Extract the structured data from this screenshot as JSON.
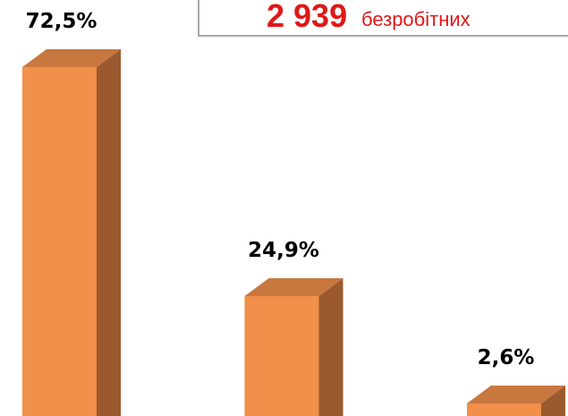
{
  "chart_data": {
    "type": "bar3d",
    "title": "2 939",
    "subtitle": "безробітних",
    "categories": [
      null,
      null,
      null
    ],
    "values": [
      72.5,
      24.9,
      2.6
    ],
    "value_labels": [
      "72,5%",
      "24,9%",
      "2,6%"
    ],
    "colors": {
      "front": "#f0904a",
      "side": "#9a5a2e",
      "top": "#c8773f"
    },
    "title_color": "#e01818"
  }
}
